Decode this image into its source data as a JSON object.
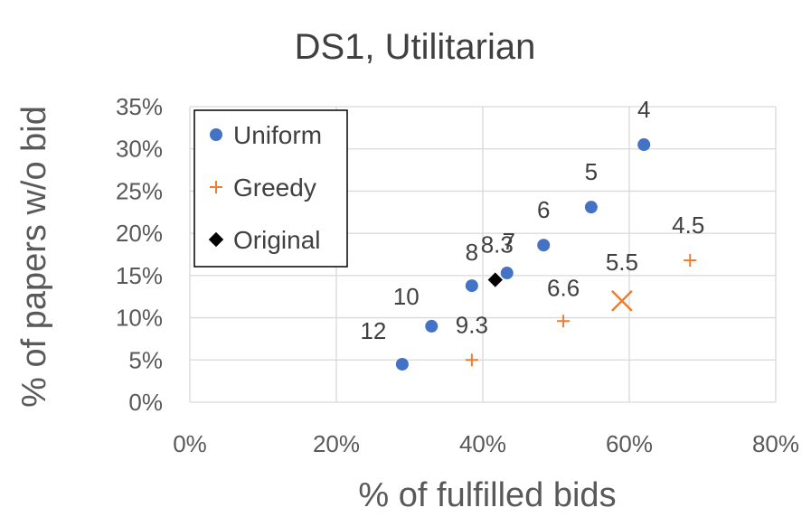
{
  "chart_data": {
    "type": "scatter",
    "title": "DS1, Utilitarian",
    "xlabel": "% of fulfilled bids",
    "ylabel": "% of papers w/o bid",
    "xlim": [
      0,
      0.8
    ],
    "ylim": [
      0,
      0.35
    ],
    "x_ticks": [
      0,
      0.2,
      0.4,
      0.6,
      0.8
    ],
    "y_ticks": [
      0,
      0.05,
      0.1,
      0.15,
      0.2,
      0.25,
      0.3,
      0.35
    ],
    "x_tick_labels": [
      "0%",
      "20%",
      "40%",
      "60%",
      "80%"
    ],
    "y_tick_labels": [
      "0%",
      "5%",
      "10%",
      "15%",
      "20%",
      "25%",
      "30%",
      "35%"
    ],
    "grid": true,
    "legend_position": "top-left",
    "series": [
      {
        "name": "Uniform",
        "marker": "circle",
        "color": "#4472c4",
        "points": [
          {
            "x": 0.29,
            "y": 0.045,
            "label": "12"
          },
          {
            "x": 0.33,
            "y": 0.09,
            "label": "10"
          },
          {
            "x": 0.385,
            "y": 0.138,
            "label": "8"
          },
          {
            "x": 0.433,
            "y": 0.153,
            "label": "7"
          },
          {
            "x": 0.483,
            "y": 0.186,
            "label": "6"
          },
          {
            "x": 0.548,
            "y": 0.231,
            "label": "5"
          },
          {
            "x": 0.62,
            "y": 0.305,
            "label": "4"
          }
        ]
      },
      {
        "name": "Greedy",
        "marker": "plus",
        "color": "#ed7d31",
        "points": [
          {
            "x": 0.385,
            "y": 0.05,
            "label": "9.3"
          },
          {
            "x": 0.51,
            "y": 0.096,
            "label": "6.6"
          },
          {
            "x": 0.59,
            "y": 0.12,
            "label": "5.5",
            "marker": "x"
          },
          {
            "x": 0.683,
            "y": 0.168,
            "label": "4.5"
          }
        ]
      },
      {
        "name": "Original",
        "marker": "diamond",
        "color": "#000000",
        "points": [
          {
            "x": 0.417,
            "y": 0.145,
            "label": "8.3"
          }
        ]
      }
    ]
  }
}
